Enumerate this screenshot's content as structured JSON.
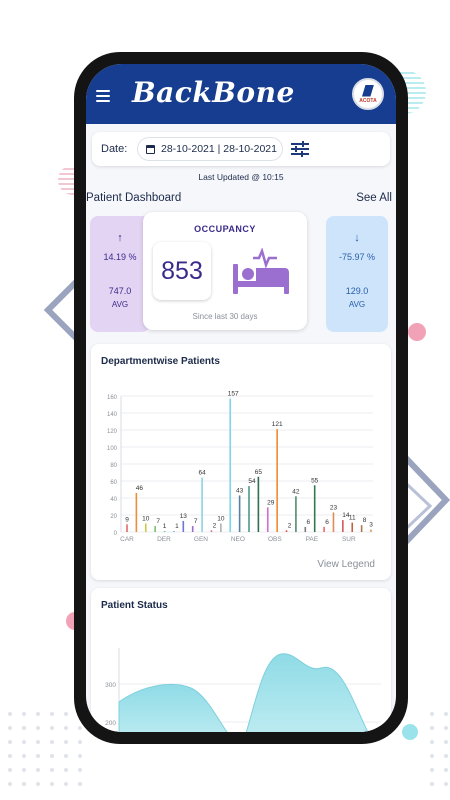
{
  "app": {
    "logo_text": "BackBone",
    "brand_badge_text": "ACOTA"
  },
  "date_filter": {
    "label": "Date:",
    "range": "28-10-2021 | 28-10-2021"
  },
  "last_updated": "Last Updated @ 10:15",
  "dashboard": {
    "title": "Patient Dashboard",
    "see_all": "See All"
  },
  "cards": {
    "left": {
      "arrow": "↑",
      "percent": "14.19 %",
      "avg_value": "747.0",
      "avg_label": "AVG"
    },
    "occupancy": {
      "title": "OCCUPANCY",
      "value": "853",
      "subtitle": "Since last 30 days"
    },
    "right": {
      "arrow": "↓",
      "percent": "-75.97 %",
      "avg_value": "129.0",
      "avg_label": "AVG"
    }
  },
  "department_chart": {
    "title": "Departmentwise Patients",
    "view_legend": "View Legend"
  },
  "patient_status": {
    "title": "Patient Status"
  },
  "chart_data": [
    {
      "type": "bar",
      "title": "Departmentwise Patients",
      "ylim": [
        0,
        160
      ],
      "yticks": [
        0,
        20,
        40,
        60,
        80,
        100,
        120,
        140,
        160
      ],
      "category_labels": [
        "CAR",
        "DER",
        "GEN",
        "NEO",
        "OBS",
        "PAE",
        "SUR"
      ],
      "values": [
        9,
        46,
        10,
        7,
        1,
        1,
        13,
        7,
        64,
        2,
        10,
        157,
        43,
        54,
        65,
        29,
        121,
        2,
        42,
        6,
        55,
        6,
        23,
        14,
        11,
        8,
        3
      ],
      "bar_colors": [
        "#e06b6b",
        "#e8903c",
        "#c8c846",
        "#77c26b",
        "#4fb39a",
        "#55a7d6",
        "#6a79d4",
        "#9a6bd0",
        "#8fd0e6",
        "#e06b9a",
        "#b0b0b0",
        "#7fd3ea",
        "#5a7fa0",
        "#4a9a8a",
        "#2f6e4e",
        "#d46bd4",
        "#f08a2c",
        "#e05050",
        "#4c8c6c",
        "#7a7a7a",
        "#2f7a4e",
        "#e86b6b",
        "#e08a5a",
        "#d45a5a",
        "#c06040",
        "#a87a50",
        "#e0a060"
      ],
      "grid": true
    },
    {
      "type": "area",
      "title": "Patient Status",
      "yticks": [
        200,
        300
      ]
    }
  ]
}
